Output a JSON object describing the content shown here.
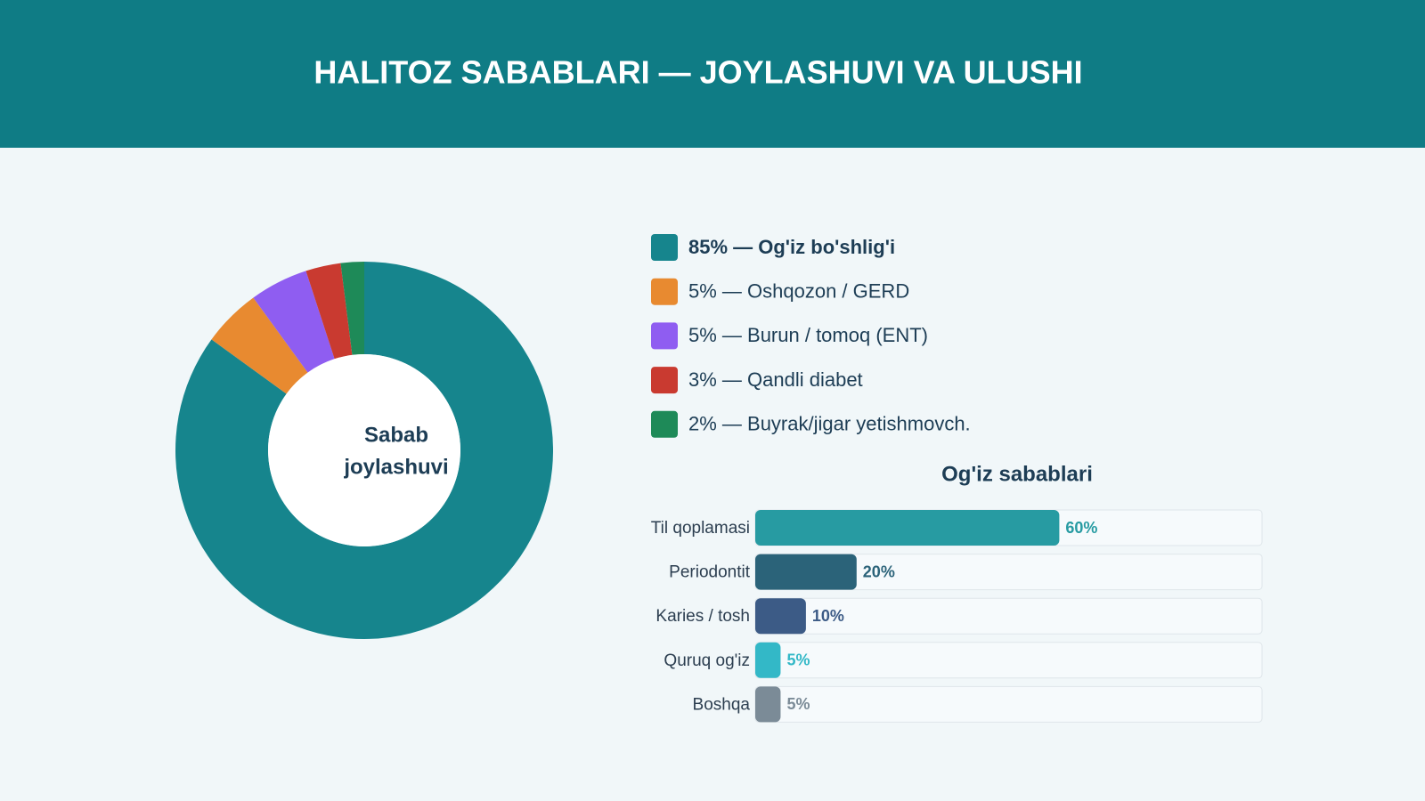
{
  "header": {
    "title": "HALITOZ SABABLARI — JOYLASHUVI VA ULUSHI"
  },
  "chart_data": [
    {
      "type": "pie",
      "center_label": [
        "Sabab",
        "joylashuvi"
      ],
      "categories": [
        "85% — Og'iz bo'shlig'i",
        "5% — Oshqozon / GERD",
        "5% — Burun / tomoq (ENT)",
        "3% — Qandli diabet",
        "2% — Buyrak/jigar yetishmovch."
      ],
      "values": [
        85,
        5,
        5,
        3,
        2
      ],
      "colors": [
        "#16858d",
        "#e88a30",
        "#8f5df1",
        "#c93a30",
        "#1e8a58"
      ]
    },
    {
      "type": "bar",
      "title": "Og'iz sabablari",
      "categories": [
        "Til qoplamasi",
        "Periodontit",
        "Karies / tosh",
        "Quruq og'iz",
        "Boshqa"
      ],
      "values": [
        60,
        20,
        10,
        5,
        5
      ],
      "value_labels": [
        "60%",
        "20%",
        "10%",
        "5%",
        "5%"
      ],
      "colors": [
        "#279ba2",
        "#2b6379",
        "#3c5b86",
        "#33b8c7",
        "#7b8b97"
      ],
      "xlim": [
        0,
        100
      ]
    }
  ]
}
